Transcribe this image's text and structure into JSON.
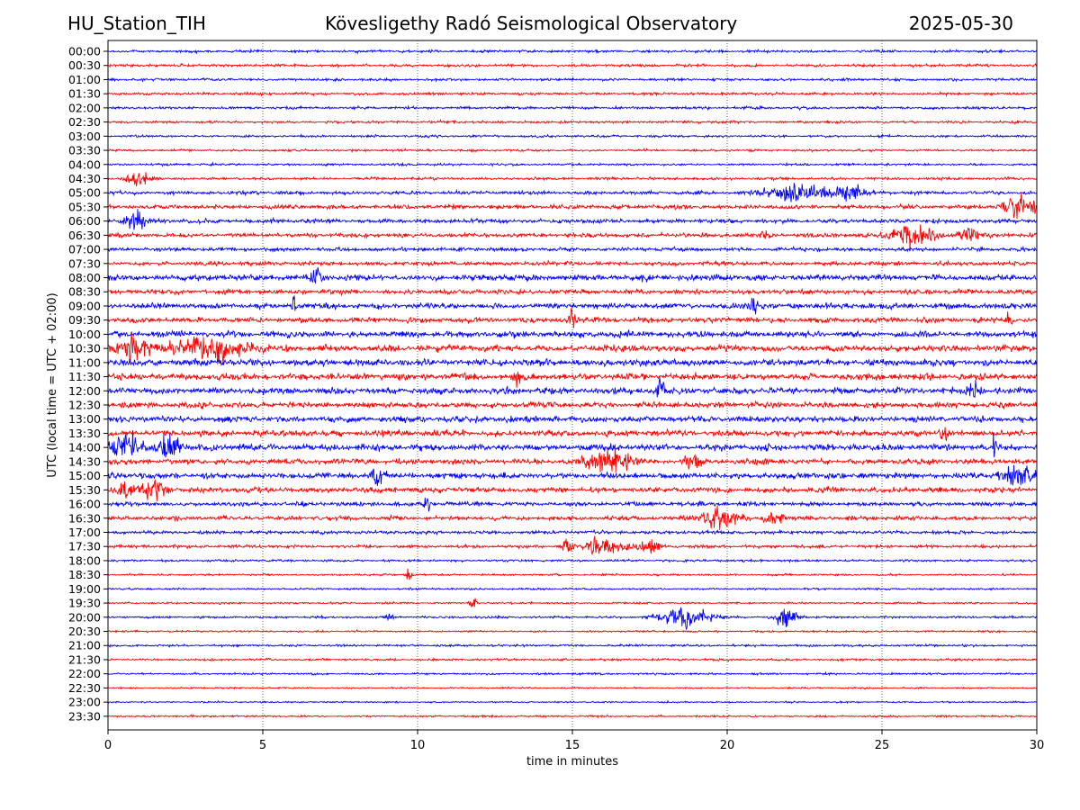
{
  "header": {
    "station": "HU_Station_TIH",
    "observatory": "Kövesligethy Radó Seismological Observatory",
    "date": "2025-05-30"
  },
  "chart_data": {
    "type": "line",
    "title": "Kövesligethy Radó Seismological Observatory",
    "xlabel": "time in minutes",
    "ylabel": "UTC (local time = UTC + 02:00)",
    "xlim": [
      0,
      30
    ],
    "x_ticks": [
      0,
      5,
      10,
      15,
      20,
      25,
      30
    ],
    "grid": "vertical dotted",
    "rows": [
      "00:00",
      "00:30",
      "01:00",
      "01:30",
      "02:00",
      "02:30",
      "03:00",
      "03:30",
      "04:00",
      "04:30",
      "05:00",
      "05:30",
      "06:00",
      "06:30",
      "07:00",
      "07:30",
      "08:00",
      "08:30",
      "09:00",
      "09:30",
      "10:00",
      "10:30",
      "11:00",
      "11:30",
      "12:00",
      "12:30",
      "13:00",
      "13:30",
      "14:00",
      "14:30",
      "15:00",
      "15:30",
      "16:00",
      "16:30",
      "17:00",
      "17:30",
      "18:00",
      "18:30",
      "19:00",
      "19:30",
      "20:00",
      "20:30",
      "21:00",
      "21:30",
      "22:00",
      "22:30",
      "23:00",
      "23:30"
    ],
    "row_colors": [
      "#0000ff",
      "#ff0000"
    ],
    "noise_level": [
      0.35,
      0.35,
      0.35,
      0.35,
      0.35,
      0.35,
      0.3,
      0.3,
      0.3,
      0.35,
      0.45,
      0.55,
      0.55,
      0.55,
      0.5,
      0.55,
      0.8,
      0.6,
      0.7,
      0.7,
      0.8,
      0.85,
      0.85,
      0.85,
      0.85,
      0.75,
      0.8,
      0.8,
      0.85,
      0.75,
      0.75,
      0.7,
      0.55,
      0.55,
      0.45,
      0.4,
      0.3,
      0.25,
      0.25,
      0.25,
      0.3,
      0.25,
      0.3,
      0.3,
      0.25,
      0.2,
      0.2,
      0.25
    ],
    "bursts": [
      {
        "row": 9,
        "t": 1.0,
        "amp": 1.0,
        "dur": 0.4
      },
      {
        "row": 10,
        "t": 22.3,
        "amp": 1.5,
        "dur": 0.9
      },
      {
        "row": 10,
        "t": 24.0,
        "amp": 1.0,
        "dur": 0.5
      },
      {
        "row": 11,
        "t": 29.5,
        "amp": 1.5,
        "dur": 0.6
      },
      {
        "row": 12,
        "t": 0.9,
        "amp": 1.8,
        "dur": 0.3
      },
      {
        "row": 13,
        "t": 26.0,
        "amp": 1.8,
        "dur": 0.6
      },
      {
        "row": 13,
        "t": 27.8,
        "amp": 1.2,
        "dur": 0.3
      },
      {
        "row": 13,
        "t": 21.2,
        "amp": 1.4,
        "dur": 0.1
      },
      {
        "row": 16,
        "t": 6.7,
        "amp": 2.0,
        "dur": 0.15
      },
      {
        "row": 18,
        "t": 6.0,
        "amp": 1.4,
        "dur": 0.1
      },
      {
        "row": 18,
        "t": 20.9,
        "amp": 1.4,
        "dur": 0.2
      },
      {
        "row": 19,
        "t": 15.0,
        "amp": 1.2,
        "dur": 0.15
      },
      {
        "row": 19,
        "t": 29.1,
        "amp": 1.8,
        "dur": 0.1
      },
      {
        "row": 21,
        "t": 0.8,
        "amp": 1.8,
        "dur": 0.4
      },
      {
        "row": 21,
        "t": 3.3,
        "amp": 1.6,
        "dur": 1.2
      },
      {
        "row": 23,
        "t": 13.2,
        "amp": 1.4,
        "dur": 0.1
      },
      {
        "row": 24,
        "t": 17.9,
        "amp": 1.5,
        "dur": 0.2
      },
      {
        "row": 24,
        "t": 28.0,
        "amp": 1.2,
        "dur": 0.2
      },
      {
        "row": 27,
        "t": 27.0,
        "amp": 1.5,
        "dur": 0.1
      },
      {
        "row": 28,
        "t": 0.5,
        "amp": 2.0,
        "dur": 0.5
      },
      {
        "row": 28,
        "t": 2.0,
        "amp": 1.8,
        "dur": 0.3
      },
      {
        "row": 28,
        "t": 28.6,
        "amp": 1.6,
        "dur": 0.1
      },
      {
        "row": 29,
        "t": 16.2,
        "amp": 1.8,
        "dur": 0.7
      },
      {
        "row": 29,
        "t": 18.9,
        "amp": 1.6,
        "dur": 0.2
      },
      {
        "row": 30,
        "t": 8.7,
        "amp": 1.4,
        "dur": 0.2
      },
      {
        "row": 30,
        "t": 29.5,
        "amp": 1.8,
        "dur": 0.5
      },
      {
        "row": 31,
        "t": 0.5,
        "amp": 1.4,
        "dur": 0.3
      },
      {
        "row": 31,
        "t": 1.5,
        "amp": 1.5,
        "dur": 0.4
      },
      {
        "row": 32,
        "t": 10.3,
        "amp": 1.3,
        "dur": 0.1
      },
      {
        "row": 33,
        "t": 19.8,
        "amp": 1.6,
        "dur": 0.6
      },
      {
        "row": 33,
        "t": 21.5,
        "amp": 1.1,
        "dur": 0.3
      },
      {
        "row": 35,
        "t": 16.0,
        "amp": 1.8,
        "dur": 0.6
      },
      {
        "row": 35,
        "t": 17.5,
        "amp": 1.0,
        "dur": 0.3
      },
      {
        "row": 35,
        "t": 14.8,
        "amp": 1.1,
        "dur": 0.15
      },
      {
        "row": 37,
        "t": 9.7,
        "amp": 1.4,
        "dur": 0.1
      },
      {
        "row": 39,
        "t": 11.8,
        "amp": 1.8,
        "dur": 0.08
      },
      {
        "row": 40,
        "t": 18.6,
        "amp": 1.3,
        "dur": 0.8
      },
      {
        "row": 40,
        "t": 21.9,
        "amp": 1.8,
        "dur": 0.3
      },
      {
        "row": 40,
        "t": 9.1,
        "amp": 0.9,
        "dur": 0.1
      }
    ]
  }
}
